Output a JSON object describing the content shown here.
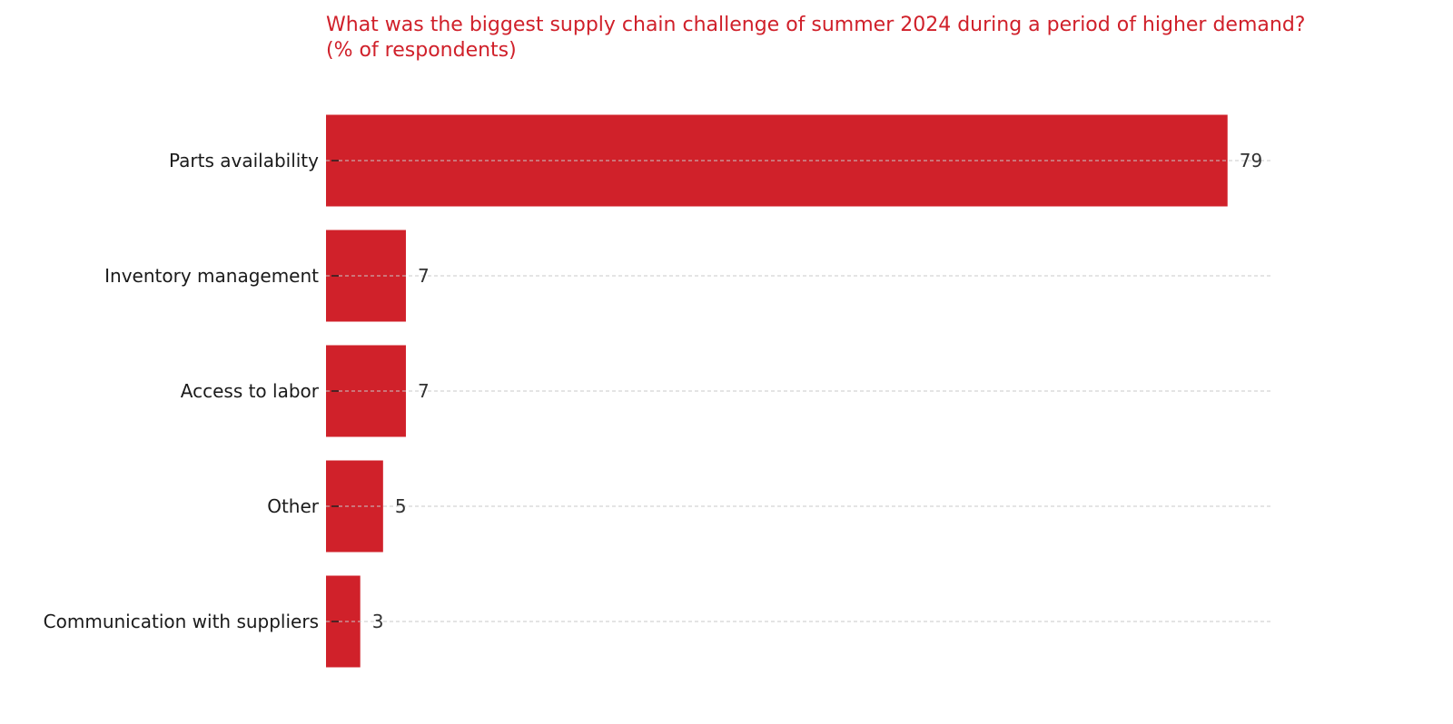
{
  "chart_data": {
    "type": "bar",
    "orientation": "horizontal",
    "title": "What was the biggest supply chain challenge of summer 2024 during a period of higher demand?",
    "subtitle": "(% of respondents)",
    "categories": [
      "Parts availability",
      "Inventory management",
      "Access to labor",
      "Other",
      "Communication with suppliers"
    ],
    "values": [
      79,
      7,
      7,
      5,
      3
    ],
    "value_labels": [
      "79",
      "7",
      "7",
      "5",
      "3"
    ],
    "xlabel": "",
    "ylabel": "",
    "xlim": [
      0,
      83
    ],
    "grid": "horizontal dashed",
    "bar_color": "#d0212a",
    "title_color": "#d0202a"
  }
}
